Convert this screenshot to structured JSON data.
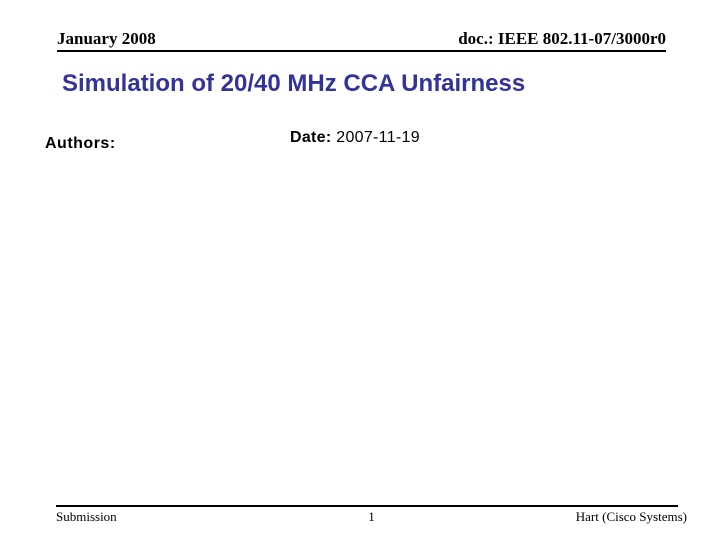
{
  "header": {
    "date": "January 2008",
    "doc_number": "doc.: IEEE 802.11-07/3000r0"
  },
  "title": "Simulation of 20/40 MHz CCA Unfairness",
  "body": {
    "authors_label": "Authors:",
    "date_label": "Date:",
    "date_value": "2007-11-19"
  },
  "footer": {
    "left": "Submission",
    "page_number": "1",
    "right": "Hart (Cisco Systems)"
  },
  "colors": {
    "title_text": "#333399",
    "body_text": "#000000",
    "background": "#ffffff"
  }
}
